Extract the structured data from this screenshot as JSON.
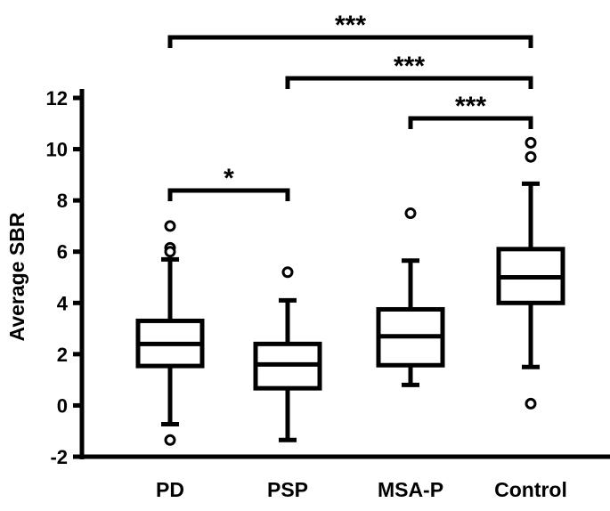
{
  "chart_data": {
    "type": "box",
    "title": "",
    "xlabel": "",
    "ylabel": "Average SBR",
    "ylim": [
      -2,
      12
    ],
    "yticks": [
      -2,
      0,
      2,
      4,
      6,
      8,
      10,
      12
    ],
    "ytick_labels": [
      "-2",
      "0",
      "2",
      "4",
      "6",
      "8",
      "10",
      "12"
    ],
    "categories": [
      "PD",
      "PSP",
      "MSA-P",
      "Control"
    ],
    "boxes": [
      {
        "name": "PD",
        "whisker_low": -0.73,
        "q1": 1.54,
        "median": 2.4,
        "q3": 3.3,
        "whisker_high": 5.7,
        "outliers": [
          7.0,
          6.15,
          6.0,
          -1.35
        ]
      },
      {
        "name": "PSP",
        "whisker_low": -1.35,
        "q1": 0.67,
        "median": 1.6,
        "q3": 2.4,
        "whisker_high": 4.1,
        "outliers": [
          5.2
        ]
      },
      {
        "name": "MSA-P",
        "whisker_low": 0.8,
        "q1": 1.57,
        "median": 2.7,
        "q3": 3.75,
        "whisker_high": 5.65,
        "outliers": [
          7.5
        ]
      },
      {
        "name": "Control",
        "whisker_low": 1.5,
        "q1": 4.0,
        "median": 5.0,
        "q3": 6.1,
        "whisker_high": 8.65,
        "outliers": [
          10.25,
          9.7,
          0.07
        ]
      }
    ],
    "significance": [
      {
        "from": "PD",
        "to": "Control",
        "label": "***"
      },
      {
        "from": "PSP",
        "to": "Control",
        "label": "***"
      },
      {
        "from": "MSA-P",
        "to": "Control",
        "label": "***"
      },
      {
        "from": "PD",
        "to": "PSP",
        "label": "*"
      }
    ],
    "grid": false
  }
}
